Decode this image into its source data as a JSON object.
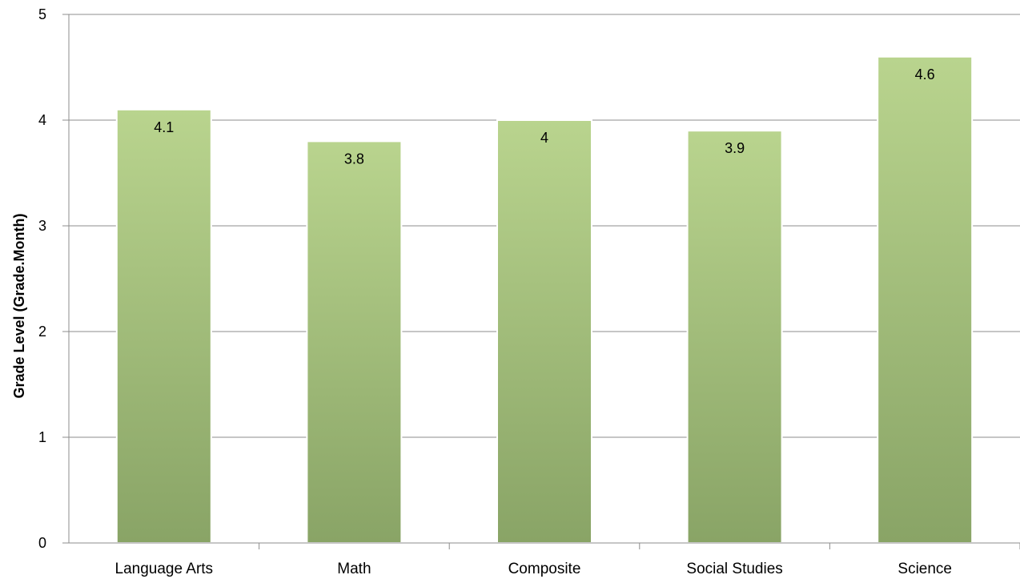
{
  "chart_data": {
    "type": "bar",
    "categories": [
      "Language Arts",
      "Math",
      "Composite",
      "Social Studies",
      "Science"
    ],
    "values": [
      4.1,
      3.8,
      4,
      3.9,
      4.6
    ],
    "value_labels": [
      "4.1",
      "3.8",
      "4",
      "3.9",
      "4.6"
    ],
    "title": "",
    "xlabel": "",
    "ylabel": "Grade Level (Grade.Month)",
    "ylim": [
      0,
      5
    ],
    "yticks": [
      "0",
      "1",
      "2",
      "3",
      "4",
      "5"
    ],
    "grid": true,
    "legend": "none",
    "bar_color_top": "#b9d48e",
    "bar_color_bottom": "#89a466"
  }
}
